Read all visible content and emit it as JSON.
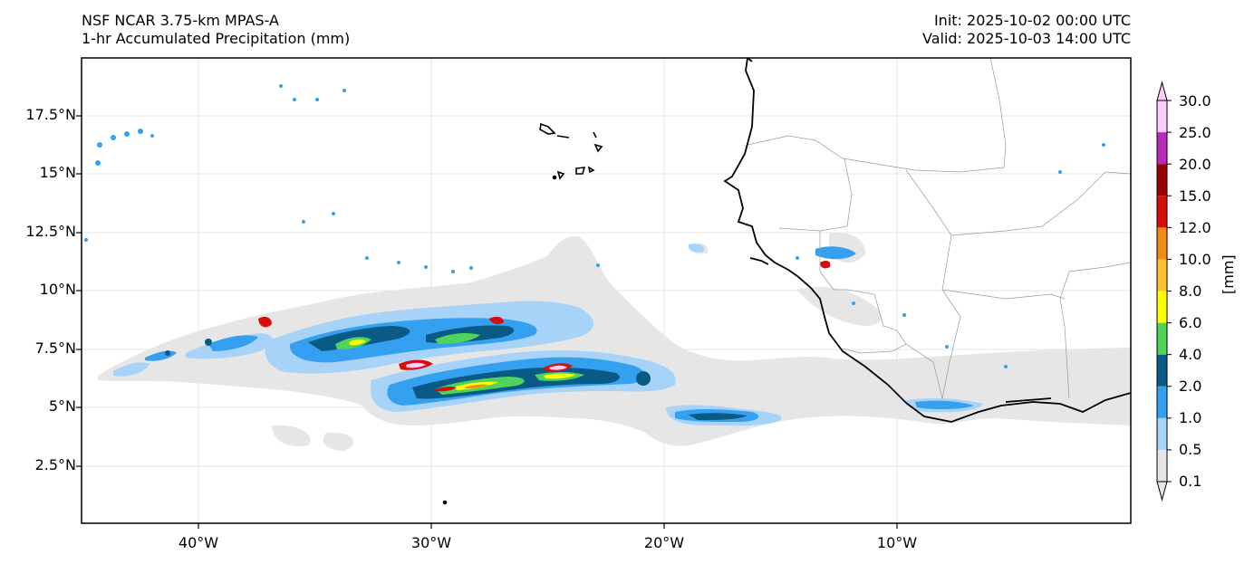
{
  "title": {
    "model": "NSF NCAR 3.75-km MPAS-A",
    "field": "1-hr Accumulated Precipitation (mm)",
    "init": "Init: 2025-10-02 00:00 UTC",
    "valid": "Valid: 2025-10-03 14:00 UTC"
  },
  "axes": {
    "lat_ticks": [
      "17.5°N",
      "15°N",
      "12.5°N",
      "10°N",
      "7.5°N",
      "5°N",
      "2.5°N"
    ],
    "lon_ticks": [
      "40°W",
      "30°W",
      "20°W",
      "10°W"
    ]
  },
  "colorbar": {
    "unit": "[mm]",
    "levels": [
      "0.1",
      "0.5",
      "1.0",
      "2.0",
      "4.0",
      "6.0",
      "8.0",
      "10.0",
      "12.0",
      "15.0",
      "20.0",
      "25.0",
      "30.0"
    ],
    "colors": [
      "#e6e6e6",
      "#a6d3f7",
      "#36a0f0",
      "#0a5a86",
      "#4fd35a",
      "#ffff00",
      "#fcc234",
      "#f08a1a",
      "#d60d0d",
      "#9a0000",
      "#b82ab8",
      "#ffccff"
    ]
  },
  "colors": {
    "coast": "#000000",
    "border": "#9a9a9a",
    "grid": "#dddddd"
  }
}
